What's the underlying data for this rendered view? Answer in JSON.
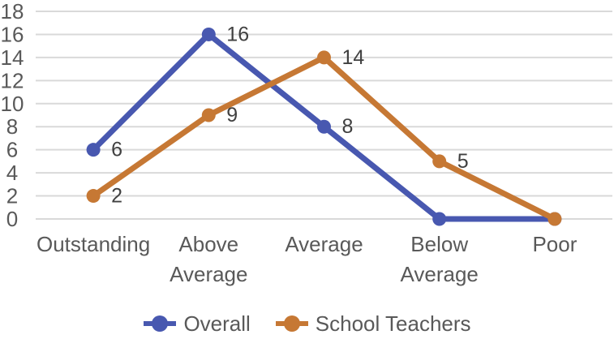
{
  "chart_data": {
    "type": "line",
    "categories": [
      "Outstanding",
      "Above Average",
      "Average",
      "Below Average",
      "Poor"
    ],
    "series": [
      {
        "name": "Overall",
        "color": "#4858B0",
        "values": [
          6,
          16,
          8,
          0,
          0
        ],
        "point_labels": [
          "6",
          "16",
          "8",
          "",
          ""
        ]
      },
      {
        "name": "School Teachers",
        "color": "#C67834",
        "values": [
          2,
          9,
          14,
          5,
          0
        ],
        "point_labels": [
          "2",
          "9",
          "14",
          "5",
          ""
        ]
      }
    ],
    "ylim": [
      0,
      18
    ],
    "ytick_step": 2,
    "ytick_labels": [
      "0",
      "2",
      "4",
      "6",
      "8",
      "10",
      "12",
      "14",
      "16",
      "18"
    ],
    "grid": true,
    "legend_position": "bottom",
    "colors": {
      "axis_text": "#595959",
      "data_label": "#404040",
      "gridline": "#D9D9D9",
      "background": "#FFFFFF"
    }
  }
}
